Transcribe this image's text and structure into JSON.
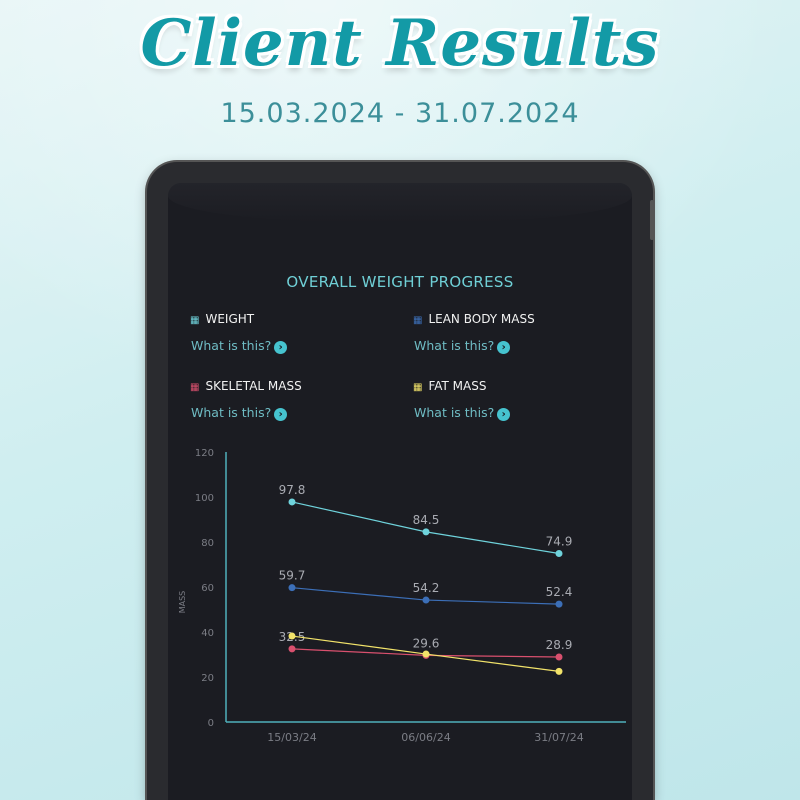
{
  "header": {
    "title": "Client Results",
    "date_range": "15.03.2024 - 31.07.2024"
  },
  "card": {
    "title": "OVERALL WEIGHT PROGRESS",
    "help_label": "What is this?",
    "help_icon": "chevron-right-circle-icon"
  },
  "legend": [
    {
      "label": "WEIGHT",
      "color": "#6fd3dc"
    },
    {
      "label": "LEAN BODY MASS",
      "color": "#3c6fb8"
    },
    {
      "label": "SKELETAL MASS",
      "color": "#d9506e"
    },
    {
      "label": "FAT MASS",
      "color": "#f2e36a"
    }
  ],
  "chart_data": {
    "type": "line",
    "ylabel": "MASS",
    "ylim": [
      0,
      120
    ],
    "yticks": [
      0,
      20,
      40,
      60,
      80,
      100,
      120
    ],
    "categories": [
      "15/03/24",
      "06/06/24",
      "31/07/24"
    ],
    "grid": false,
    "series": [
      {
        "name": "WEIGHT",
        "color": "#6fd3dc",
        "values": [
          97.8,
          84.5,
          74.9
        ],
        "labels": [
          "97.8",
          "84.5",
          "74.9"
        ]
      },
      {
        "name": "LEAN BODY MASS",
        "color": "#3c6fb8",
        "values": [
          59.7,
          54.2,
          52.4
        ],
        "labels": [
          "59.7",
          "54.2",
          "52.4"
        ]
      },
      {
        "name": "SKELETAL MASS",
        "color": "#d9506e",
        "values": [
          32.5,
          29.6,
          28.9
        ],
        "labels": [
          "32.5",
          "29.6",
          "28.9"
        ]
      },
      {
        "name": "FAT MASS",
        "color": "#f2e36a",
        "values": [
          38.2,
          30.2,
          22.5
        ],
        "labels": [
          "",
          "",
          ""
        ]
      }
    ]
  }
}
